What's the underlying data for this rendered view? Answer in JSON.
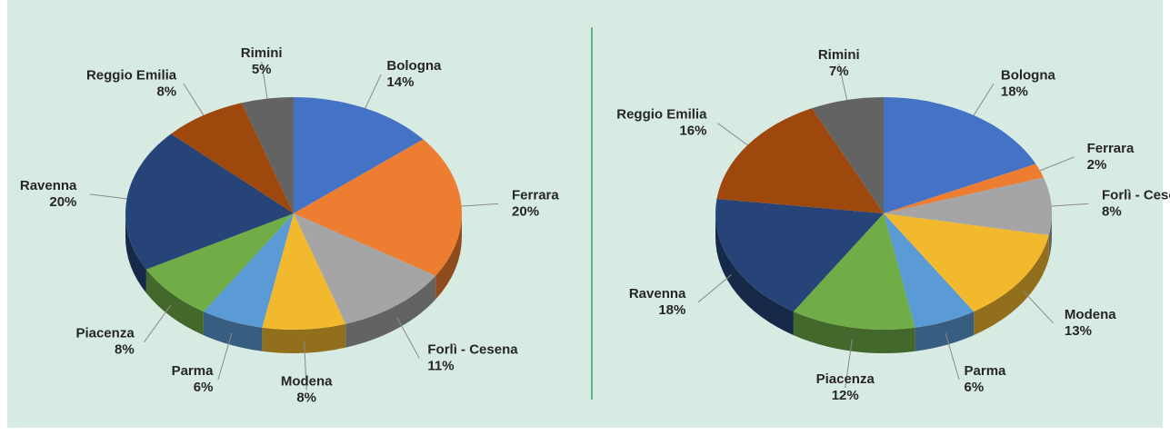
{
  "chart_data": [
    {
      "type": "pie",
      "categories": [
        "Bologna",
        "Ferrara",
        "Forlì - Cesena",
        "Modena",
        "Parma",
        "Piacenza",
        "Ravenna",
        "Reggio Emilia",
        "Rimini"
      ],
      "values": [
        14,
        20,
        11,
        8,
        6,
        8,
        20,
        8,
        5
      ],
      "value_labels": [
        "14%",
        "20%",
        "11%",
        "8%",
        "6%",
        "8%",
        "20%",
        "8%",
        "5%"
      ],
      "colors": [
        "#4472c4",
        "#ed7d31",
        "#a5a5a5",
        "#f2b92e",
        "#5b9bd5",
        "#70ad47",
        "#264478",
        "#9e480e",
        "#636363"
      ]
    },
    {
      "type": "pie",
      "categories": [
        "Bologna",
        "Ferrara",
        "Forlì - Cesena",
        "Modena",
        "Parma",
        "Piacenza",
        "Ravenna",
        "Reggio Emilia",
        "Rimini"
      ],
      "values": [
        18,
        2,
        8,
        13,
        6,
        12,
        18,
        16,
        7
      ],
      "value_labels": [
        "18%",
        "2%",
        "8%",
        "13%",
        "6%",
        "12%",
        "18%",
        "16%",
        "7%"
      ],
      "colors": [
        "#4472c4",
        "#ed7d31",
        "#a5a5a5",
        "#f2b92e",
        "#5b9bd5",
        "#70ad47",
        "#264478",
        "#9e480e",
        "#636363"
      ]
    }
  ]
}
